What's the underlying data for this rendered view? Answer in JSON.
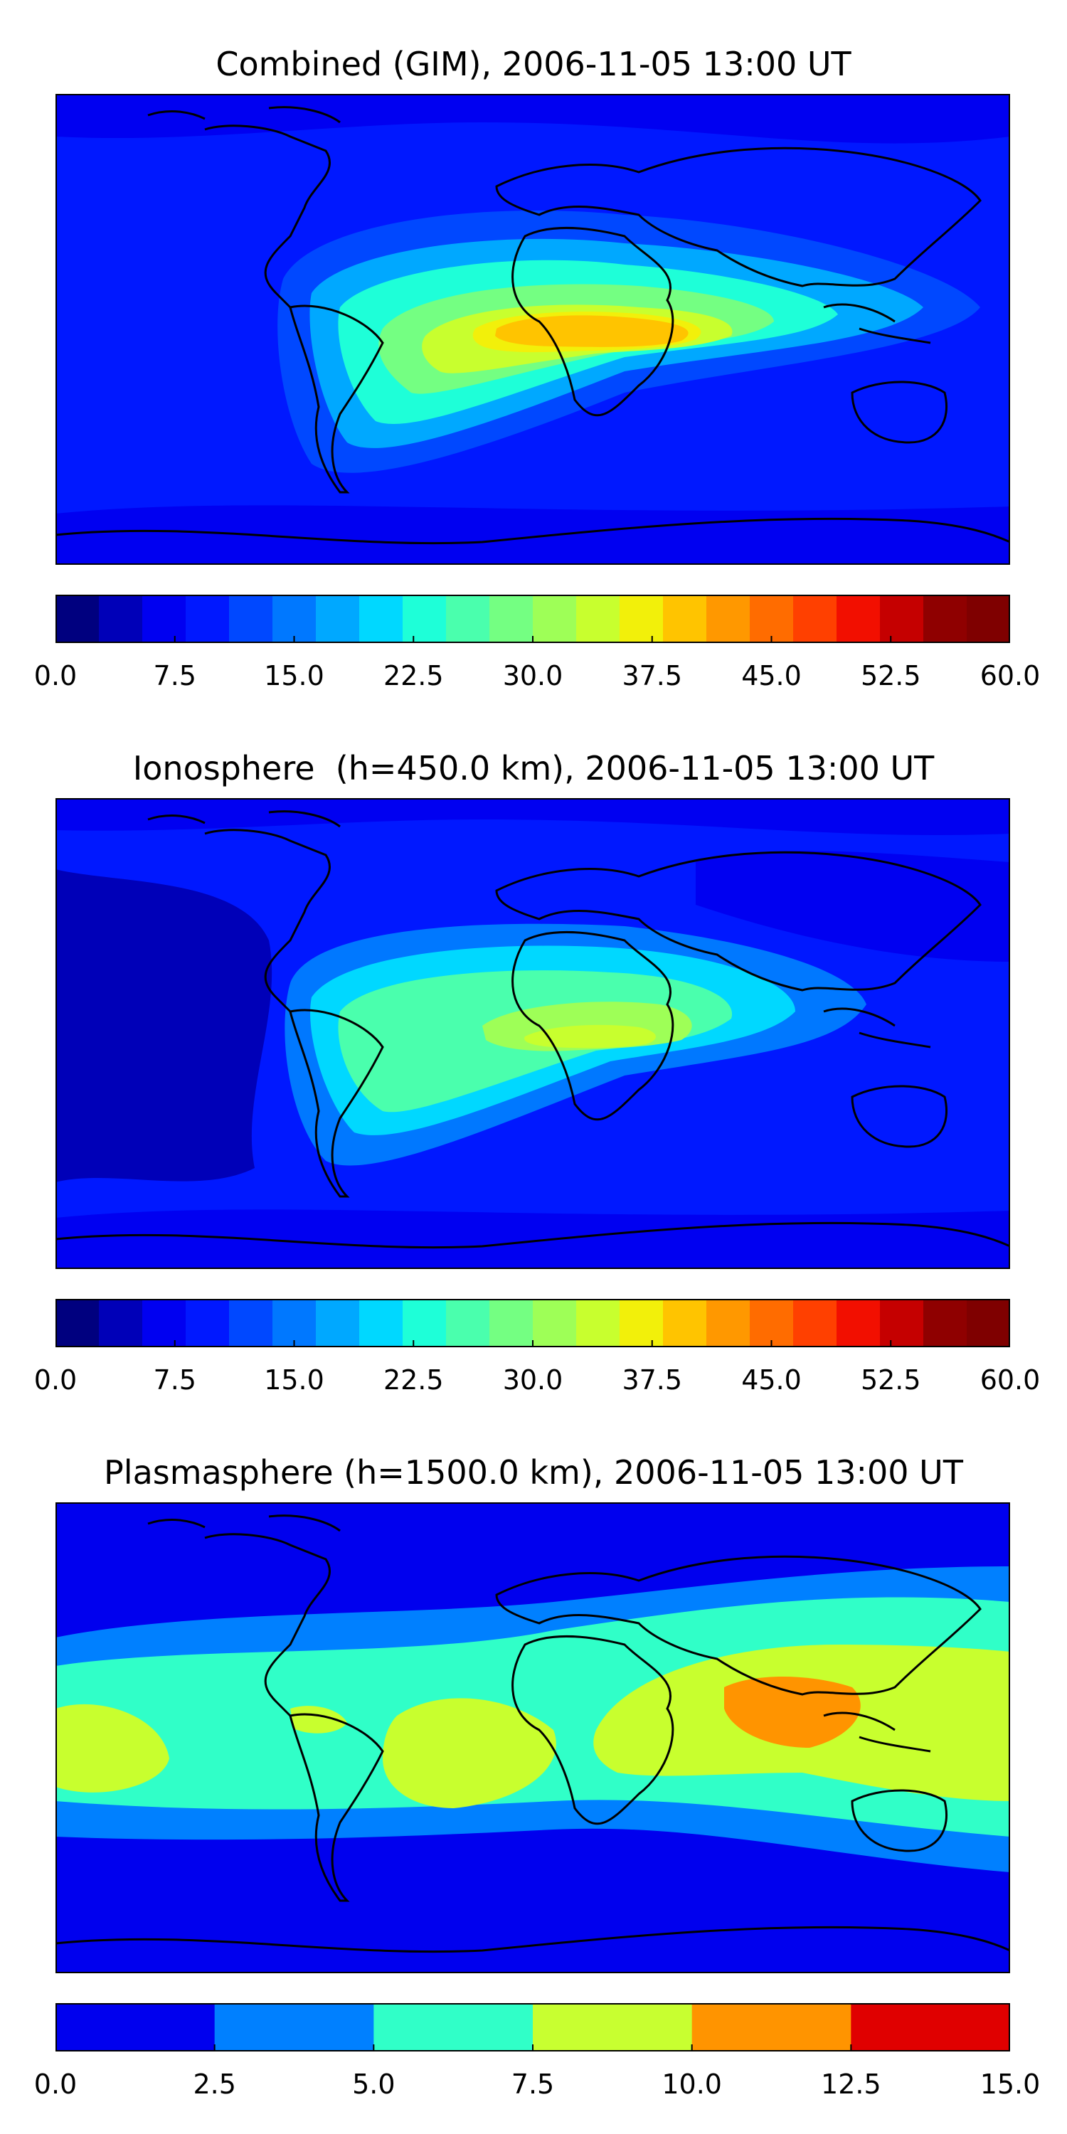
{
  "panels": [
    {
      "title": "Combined (GIM), 2006-11-05 13:00 UT",
      "colorbar": {
        "min": 0.0,
        "max": 60.0,
        "step": 2.5,
        "ticks": [
          "0.0",
          "7.5",
          "15.0",
          "22.5",
          "30.0",
          "37.5",
          "45.0",
          "52.5",
          "60.0"
        ],
        "tick_values": [
          0,
          7.5,
          15,
          22.5,
          30,
          37.5,
          45,
          52.5,
          60
        ],
        "colors": [
          "#00007f",
          "#0000b8",
          "#0000f1",
          "#0018ff",
          "#0048ff",
          "#0078ff",
          "#00a8ff",
          "#00d8ff",
          "#1effd8",
          "#4affad",
          "#74ff82",
          "#9eff57",
          "#c8ff2e",
          "#f2f00a",
          "#ffc400",
          "#ff9800",
          "#ff6c00",
          "#ff4000",
          "#f20f00",
          "#c50000",
          "#8f0000",
          "#7f0000"
        ]
      }
    },
    {
      "title": "Ionosphere  (h=450.0 km), 2006-11-05 13:00 UT",
      "colorbar": {
        "min": 0.0,
        "max": 60.0,
        "step": 2.5,
        "ticks": [
          "0.0",
          "7.5",
          "15.0",
          "22.5",
          "30.0",
          "37.5",
          "45.0",
          "52.5",
          "60.0"
        ],
        "tick_values": [
          0,
          7.5,
          15,
          22.5,
          30,
          37.5,
          45,
          52.5,
          60
        ],
        "colors": [
          "#00007f",
          "#0000b8",
          "#0000f1",
          "#0018ff",
          "#0048ff",
          "#0078ff",
          "#00a8ff",
          "#00d8ff",
          "#1effd8",
          "#4affad",
          "#74ff82",
          "#9eff57",
          "#c8ff2e",
          "#f2f00a",
          "#ffc400",
          "#ff9800",
          "#ff6c00",
          "#ff4000",
          "#f20f00",
          "#c50000",
          "#8f0000",
          "#7f0000"
        ]
      }
    },
    {
      "title": "Plasmasphere (h=1500.0 km), 2006-11-05 13:00 UT",
      "colorbar": {
        "min": 0.0,
        "max": 15.0,
        "step": 2.5,
        "ticks": [
          "0.0",
          "2.5",
          "5.0",
          "7.5",
          "10.0",
          "12.5",
          "15.0"
        ],
        "tick_values": [
          0,
          2.5,
          5,
          7.5,
          10,
          12.5,
          15
        ],
        "colors": [
          "#0000ee",
          "#0080ff",
          "#30ffc8",
          "#c8ff30",
          "#ff9400",
          "#e00000"
        ]
      }
    }
  ]
}
